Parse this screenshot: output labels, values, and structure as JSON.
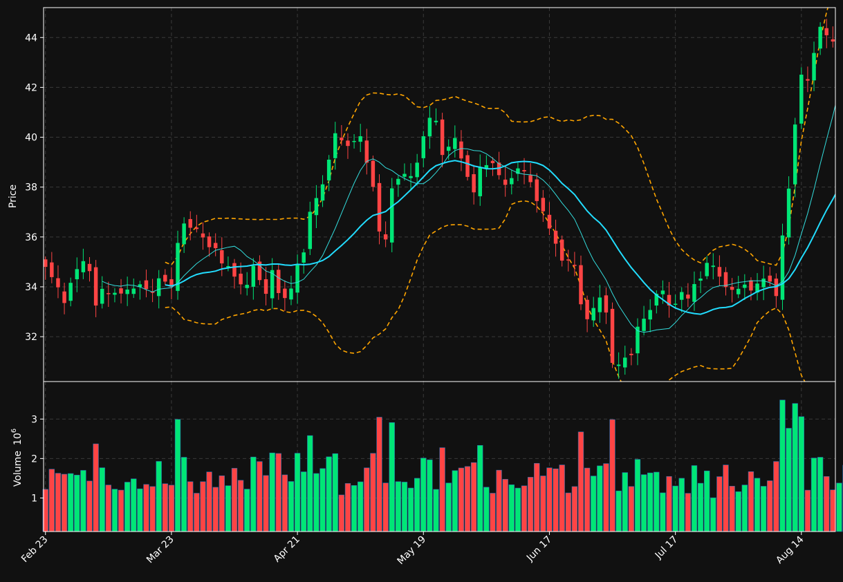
{
  "chart_data": {
    "type": "candlestick",
    "colors": {
      "background": "#111111",
      "grid": "#3a3a3a",
      "up": "#00e676",
      "down": "#ff4444",
      "ma_fast": "#33dddd",
      "ma_slow": "#22ddff",
      "bands": "#ffa500",
      "axis": "#ffffff"
    },
    "price_axis": {
      "label": "Price",
      "ticks": [
        32,
        34,
        36,
        38,
        40,
        42,
        44
      ],
      "ylim": [
        30.2,
        45.2
      ]
    },
    "volume_axis": {
      "label": "Volume",
      "multiplier": "10",
      "multiplier_exp": "6",
      "ticks": [
        1,
        2,
        3
      ],
      "ylim": [
        0.15,
        3.95
      ]
    },
    "x_ticks": [
      {
        "index": 0,
        "label": "Feb 23"
      },
      {
        "index": 20,
        "label": "Mar 23"
      },
      {
        "index": 40,
        "label": "Apr 21"
      },
      {
        "index": 60,
        "label": "May 19"
      },
      {
        "index": 80,
        "label": "Jun 17"
      },
      {
        "index": 100,
        "label": "Jul 17"
      },
      {
        "index": 120,
        "label": "Aug 14"
      }
    ],
    "xlim": [
      -0.3,
      125.4
    ],
    "close": [
      34.8,
      34.39,
      33.98,
      33.35,
      34.16,
      34.71,
      35.03,
      34.63,
      33.25,
      33.92,
      33.71,
      33.76,
      33.73,
      33.89,
      33.93,
      34.1,
      33.91,
      33.76,
      34.34,
      34.21,
      34.0,
      35.76,
      36.54,
      36.37,
      36.32,
      35.98,
      35.59,
      35.55,
      34.94,
      34.83,
      34.41,
      34.1,
      34.08,
      34.84,
      34.27,
      33.72,
      34.67,
      33.75,
      33.55,
      33.93,
      34.87,
      35.38,
      37.01,
      37.56,
      38.11,
      39.1,
      40.16,
      39.88,
      39.65,
      39.85,
      40.04,
      38.98,
      38.01,
      36.22,
      35.9,
      37.95,
      38.33,
      38.53,
      38.44,
      38.98,
      40.04,
      40.78,
      40.66,
      39.29,
      39.62,
      39.97,
      39.15,
      38.41,
      37.79,
      38.79,
      38.88,
      38.96,
      38.48,
      38.09,
      38.36,
      38.75,
      38.63,
      38.2,
      37.44,
      37.03,
      36.34,
      35.73,
      35.05,
      35.06,
      34.87,
      33.3,
      32.7,
      33.15,
      33.57,
      32.97,
      30.95,
      30.88,
      31.16,
      31.26,
      32.4,
      32.72,
      33.07,
      33.72,
      33.85,
      33.25,
      33.32,
      33.79,
      33.53,
      34.11,
      34.33,
      34.96,
      34.85,
      34.41,
      33.99,
      33.88,
      33.92,
      34.09,
      33.85,
      34.13,
      34.33,
      34.21,
      33.63,
      36.06,
      37.94,
      40.51,
      42.51,
      42.27,
      43.38,
      44.43,
      44.09,
      43.84,
      44.31,
      43.81
    ]
  }
}
